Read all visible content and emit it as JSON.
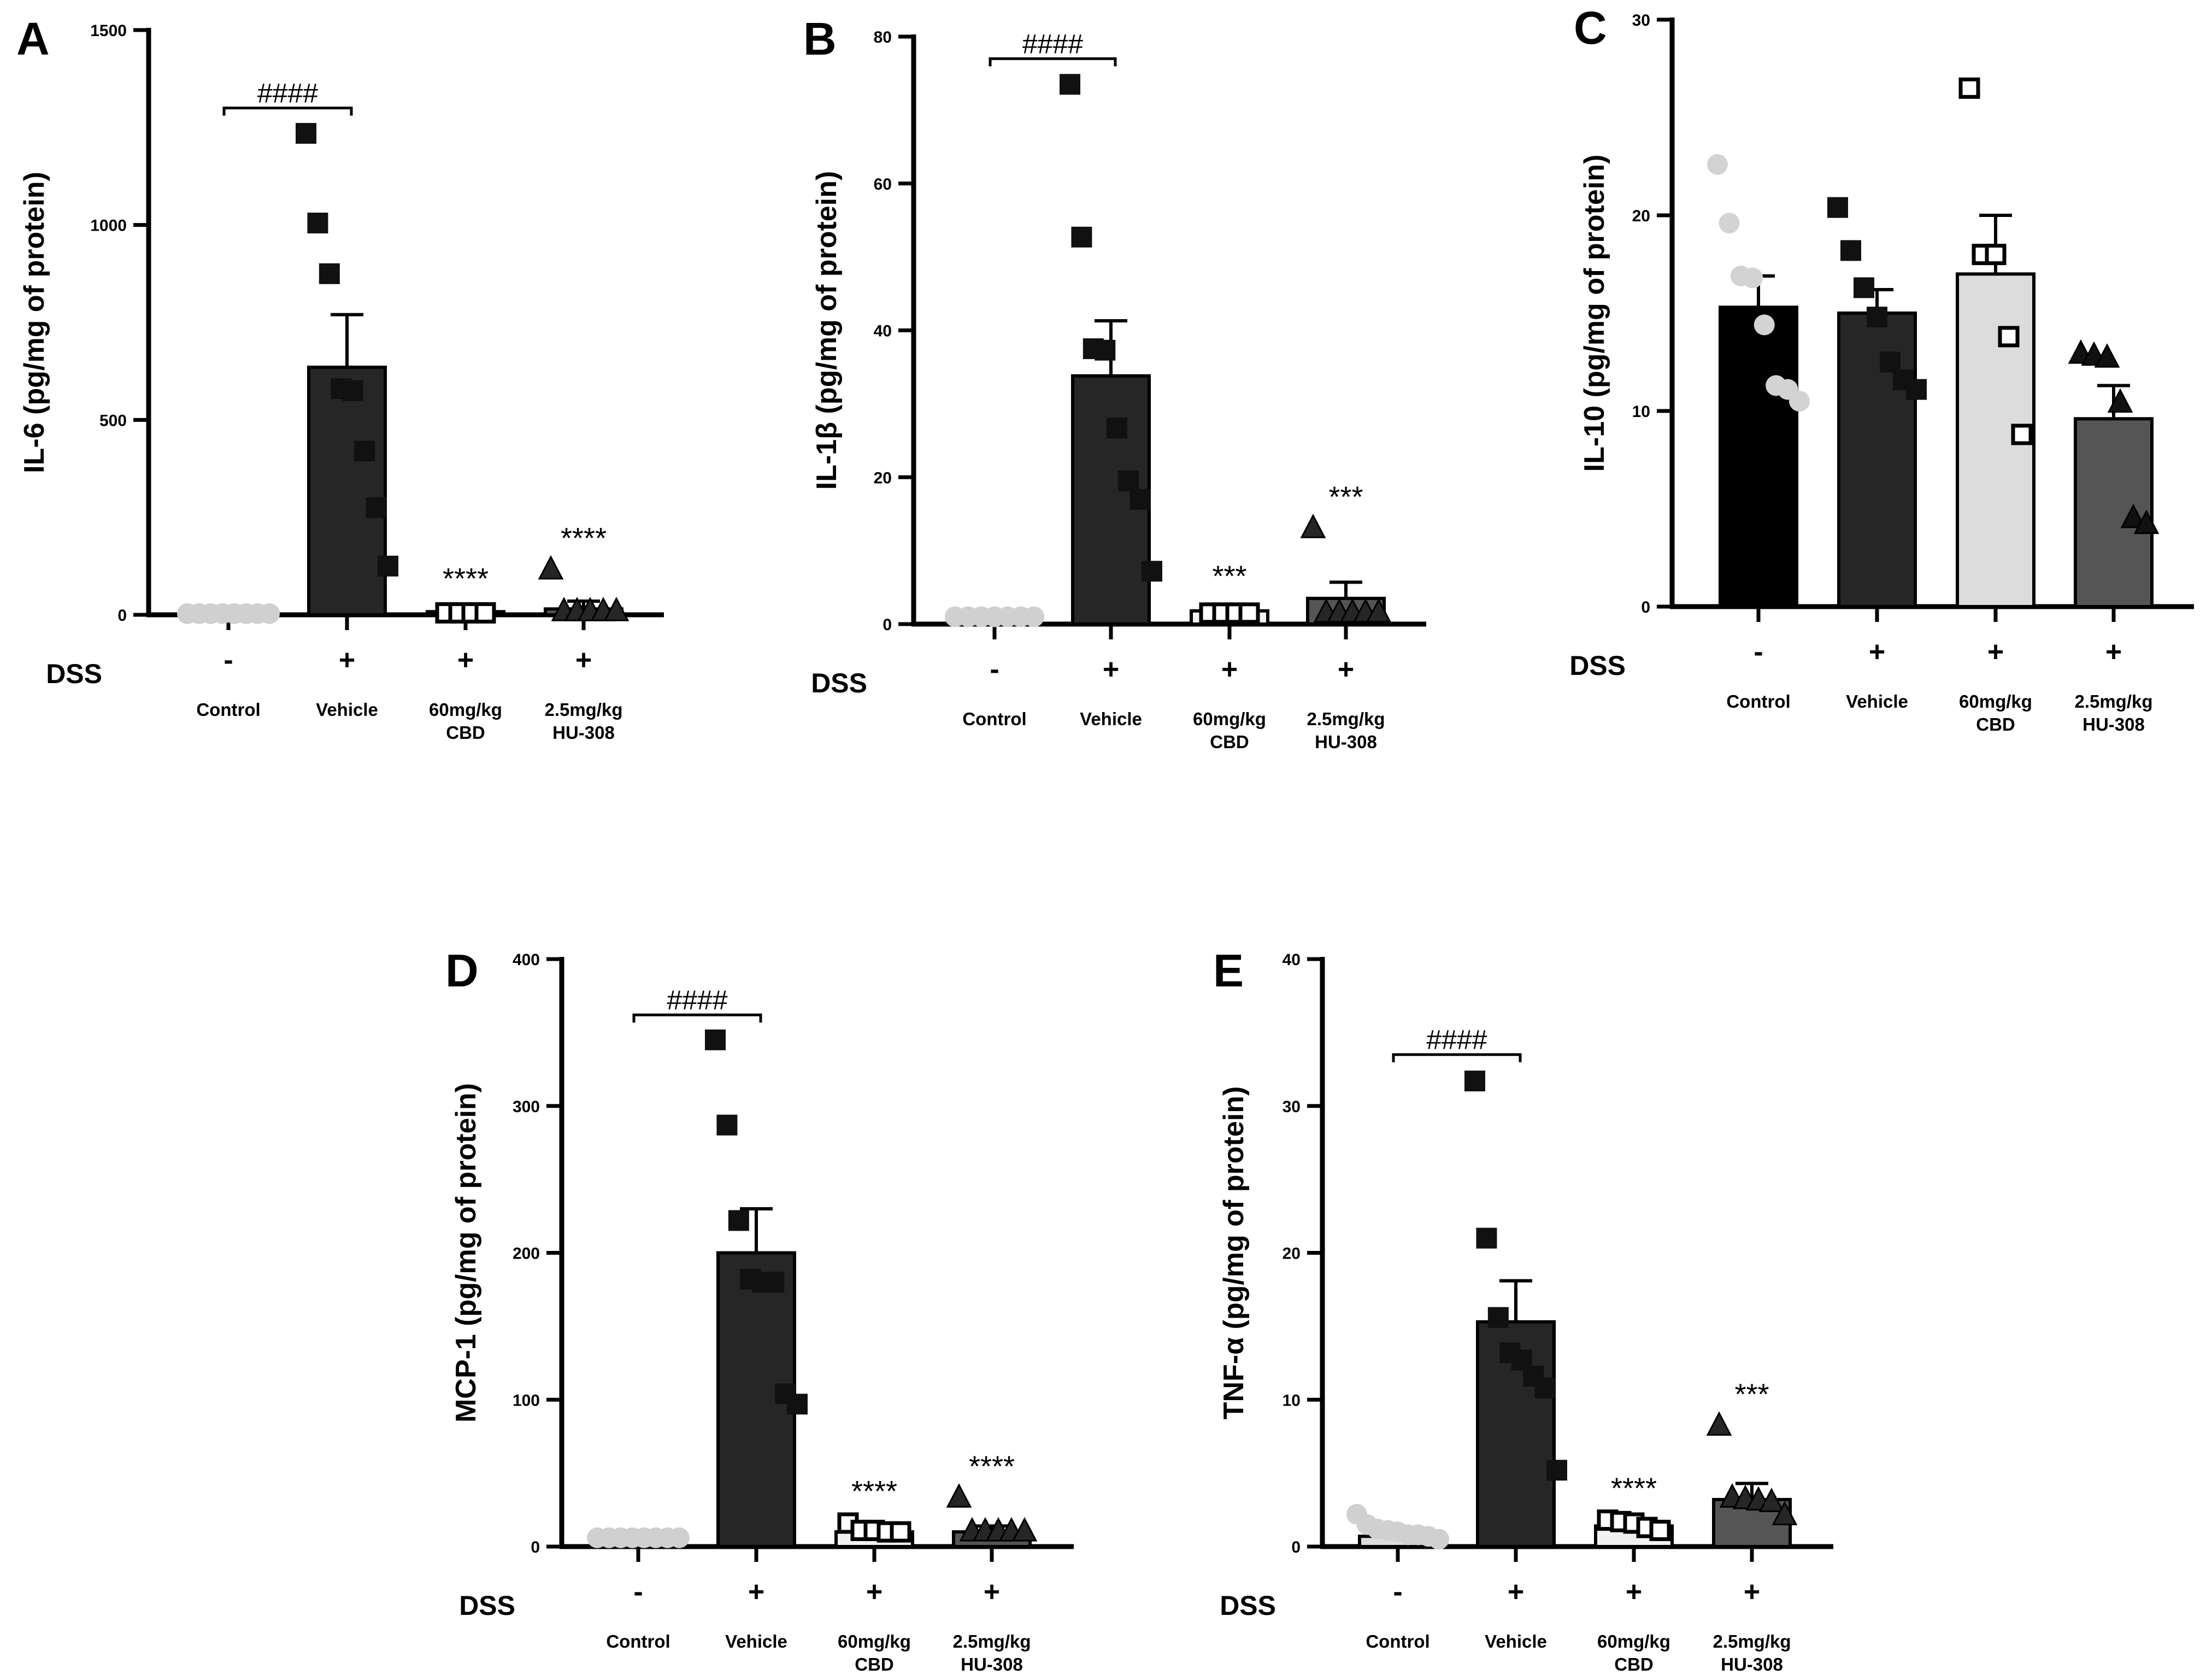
{
  "chart_data": [
    {
      "type": "bar",
      "panel": "A",
      "ylabel": "IL-6 (pg/mg of protein)",
      "ylim": [
        0,
        1500
      ],
      "yticks": [
        0,
        500,
        1000,
        1500
      ],
      "dss_label": "DSS",
      "dss": [
        "-",
        "+",
        "+",
        "+"
      ],
      "categories": [
        "Control",
        "Vehicle",
        "60mg/kg CBD",
        "2.5mg/kg HU-308"
      ],
      "values": [
        5,
        635,
        8,
        15
      ],
      "errors": [
        2,
        135,
        3,
        20
      ],
      "points": [
        [
          3,
          3,
          3,
          3,
          3,
          3,
          3,
          3
        ],
        [
          1235,
          1005,
          875,
          580,
          575,
          420,
          275,
          125
        ],
        [
          5,
          5,
          5,
          5
        ],
        [
          115,
          8,
          8,
          8,
          8,
          8
        ]
      ],
      "significance": [
        "",
        "",
        "****",
        "****"
      ],
      "comparison": {
        "label": "####",
        "from": 0,
        "to": 1,
        "y": 1300
      },
      "bar_colors": [
        "#dcdcdc",
        "#262626",
        "#f2f2f2",
        "#555555"
      ],
      "point_colors": [
        "#d0d0d0",
        "#111111",
        "#ffffff",
        "#262626"
      ],
      "markers": [
        "circle",
        "square",
        "square-open",
        "triangle"
      ]
    },
    {
      "type": "bar",
      "panel": "B",
      "ylabel": "IL-1β (pg/mg of protein)",
      "ylim": [
        0,
        80
      ],
      "yticks": [
        0,
        20,
        40,
        60,
        80
      ],
      "dss_label": "DSS",
      "dss": [
        "-",
        "+",
        "+",
        "+"
      ],
      "categories": [
        "Control",
        "Vehicle",
        "60mg/kg CBD",
        "2.5mg/kg HU-308"
      ],
      "values": [
        1,
        33.8,
        1.8,
        3.5
      ],
      "errors": [
        0.3,
        7.5,
        0.4,
        2.2
      ],
      "points": [
        [
          1,
          1,
          1,
          1,
          1,
          1,
          1
        ],
        [
          73.5,
          52.7,
          37.5,
          37.3,
          26.7,
          19.5,
          17,
          7.2
        ],
        [
          1.5,
          1.5,
          1.5,
          1.5
        ],
        [
          13,
          1.5,
          1.5,
          1.5,
          1.5,
          1.5
        ]
      ],
      "significance": [
        "",
        "",
        "***",
        "***"
      ],
      "comparison": {
        "label": "####",
        "from": 0,
        "to": 1,
        "y": 77
      },
      "bar_colors": [
        "#dcdcdc",
        "#262626",
        "#f2f2f2",
        "#555555"
      ],
      "point_colors": [
        "#d0d0d0",
        "#111111",
        "#ffffff",
        "#262626"
      ],
      "markers": [
        "circle",
        "square",
        "square-open",
        "triangle"
      ]
    },
    {
      "type": "bar",
      "panel": "C",
      "ylabel": "IL-10 (pg/mg of protein)",
      "ylim": [
        0,
        30
      ],
      "yticks": [
        0,
        10,
        20,
        30
      ],
      "dss_label": "DSS",
      "dss": [
        "-",
        "+",
        "+",
        "+"
      ],
      "categories": [
        "Control",
        "Vehicle",
        "60mg/kg CBD",
        "2.5mg/kg HU-308"
      ],
      "values": [
        15.3,
        15,
        17,
        9.6
      ],
      "errors": [
        1.6,
        1.2,
        3.0,
        1.7
      ],
      "points": [
        [
          22.6,
          19.6,
          16.9,
          16.8,
          14.4,
          11.3,
          11.1,
          10.5
        ],
        [
          20.4,
          18.2,
          16.3,
          14.8,
          12.5,
          11.6,
          11.1
        ],
        [
          26.5,
          18,
          18,
          13.8,
          8.8
        ],
        [
          12.9,
          12.8,
          12.7,
          10.4,
          4.5,
          4.2
        ]
      ],
      "significance": [
        "",
        "",
        "",
        ""
      ],
      "comparison": null,
      "bar_colors": [
        "#000000",
        "#262626",
        "#dcdcdc",
        "#555555"
      ],
      "point_colors": [
        "#d3d3d3",
        "#111111",
        "#ffffff",
        "#111111"
      ],
      "markers": [
        "circle",
        "square",
        "square-open",
        "triangle"
      ]
    },
    {
      "type": "bar",
      "panel": "D",
      "ylabel": "MCP-1 (pg/mg of protein)",
      "ylim": [
        0,
        400
      ],
      "yticks": [
        0,
        100,
        200,
        300,
        400
      ],
      "dss_label": "DSS",
      "dss": [
        "-",
        "+",
        "+",
        "+"
      ],
      "categories": [
        "Control",
        "Vehicle",
        "60mg/kg CBD",
        "2.5mg/kg HU-308"
      ],
      "values": [
        5,
        200,
        10,
        10
      ],
      "errors": [
        1,
        30,
        3,
        4
      ],
      "points": [
        [
          6,
          6,
          6,
          6,
          6,
          6,
          6,
          6
        ],
        [
          345,
          287,
          222,
          182,
          180,
          180,
          104,
          97
        ],
        [
          16,
          11,
          11,
          10,
          10
        ],
        [
          33,
          10,
          10,
          10,
          10,
          10
        ]
      ],
      "significance": [
        "",
        "",
        "****",
        "****"
      ],
      "comparison": {
        "label": "####",
        "from": 0,
        "to": 1,
        "y": 362
      },
      "bar_colors": [
        "#dcdcdc",
        "#262626",
        "#f2f2f2",
        "#555555"
      ],
      "point_colors": [
        "#d0d0d0",
        "#111111",
        "#ffffff",
        "#262626"
      ],
      "markers": [
        "circle",
        "square",
        "square-open",
        "triangle"
      ]
    },
    {
      "type": "bar",
      "panel": "E",
      "ylabel": "TNF-α (pg/mg of protein)",
      "ylim": [
        0,
        40
      ],
      "yticks": [
        0,
        10,
        20,
        30,
        40
      ],
      "dss_label": "DSS",
      "dss": [
        "-",
        "+",
        "+",
        "+"
      ],
      "categories": [
        "Control",
        "Vehicle",
        "60mg/kg CBD",
        "2.5mg/kg HU-308"
      ],
      "values": [
        0.7,
        15.3,
        1.4,
        3.2
      ],
      "errors": [
        0.4,
        2.8,
        0.3,
        1.1
      ],
      "points": [
        [
          2.2,
          1.5,
          1.2,
          1.1,
          1,
          0.8,
          0.8,
          0.7,
          0.5
        ],
        [
          31.7,
          21,
          15.6,
          13.2,
          12.7,
          11.6,
          10.8,
          5.2
        ],
        [
          1.8,
          1.7,
          1.6,
          1.3,
          1.1
        ],
        [
          8.2,
          3.3,
          3.2,
          3.1,
          3,
          2.1
        ]
      ],
      "significance": [
        "",
        "",
        "****",
        "***"
      ],
      "comparison": {
        "label": "####",
        "from": 0,
        "to": 1,
        "y": 33.5
      },
      "bar_colors": [
        "#dcdcdc",
        "#262626",
        "#f2f2f2",
        "#555555"
      ],
      "point_colors": [
        "#d0d0d0",
        "#111111",
        "#ffffff",
        "#262626"
      ],
      "markers": [
        "circle",
        "square",
        "square-open",
        "triangle"
      ]
    }
  ]
}
